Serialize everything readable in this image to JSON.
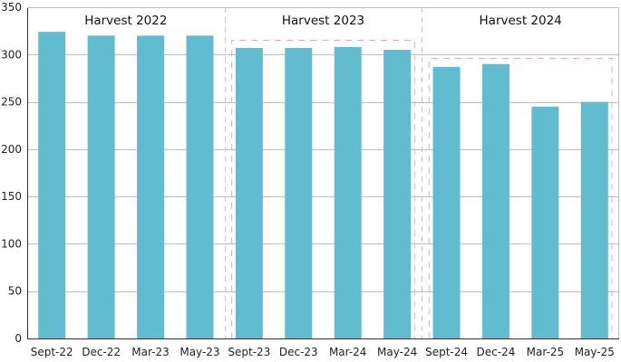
{
  "chart_data": {
    "type": "bar",
    "categories": [
      "Sept-22",
      "Dec-22",
      "Mar-23",
      "May-23",
      "Sept-23",
      "Dec-23",
      "Mar-24",
      "May-24",
      "Sept-24",
      "Dec-24",
      "Mar-25",
      "May-25"
    ],
    "series": [
      {
        "values": [
          324,
          320,
          320,
          320,
          307,
          307,
          308,
          305,
          287,
          290,
          245,
          250
        ]
      }
    ],
    "groups": [
      {
        "label": "Harvest 2022",
        "start": 0,
        "end": 3
      },
      {
        "label": "Harvest 2023",
        "start": 4,
        "end": 7,
        "reference_value": 316
      },
      {
        "label": "Harvest 2024",
        "start": 8,
        "end": 11,
        "reference_value": 296
      }
    ],
    "title": "",
    "xlabel": "",
    "ylabel": "",
    "ylim": [
      0,
      350
    ],
    "yticks": [
      0,
      50,
      100,
      150,
      200,
      250,
      300,
      350
    ],
    "grid": true,
    "legend": "none",
    "bar_color": "#62bcd0"
  }
}
